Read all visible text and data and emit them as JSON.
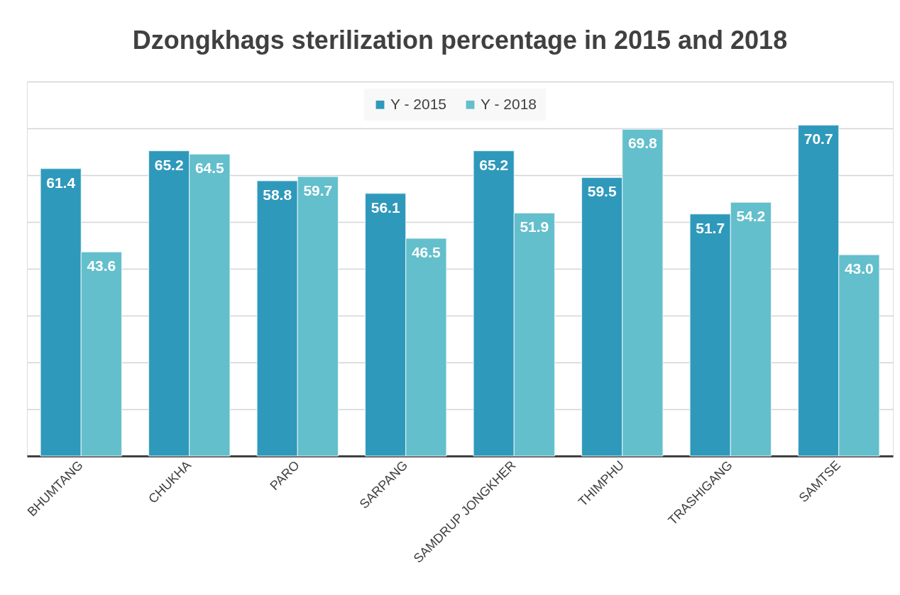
{
  "chart_data": {
    "type": "bar",
    "title": "Dzongkhags sterilization percentage in 2015 and 2018",
    "categories": [
      "BHUMTANG",
      "CHUKHA",
      "PARO",
      "SARPANG",
      "SAMDRUP JONGKHER",
      "THIMPHU",
      "TRASHIGANG",
      "SAMTSE"
    ],
    "series": [
      {
        "name": "Y - 2015",
        "color": "#2e99bb",
        "values": [
          61.4,
          65.2,
          58.8,
          56.1,
          65.2,
          59.5,
          51.7,
          70.7
        ],
        "value_labels": [
          "61.4",
          "65.2",
          "58.8",
          "56.1",
          "65.2",
          "59.5",
          "51.7",
          "70.7"
        ]
      },
      {
        "name": "Y - 2018",
        "color": "#63bfcc",
        "values": [
          43.6,
          64.5,
          59.7,
          46.5,
          51.9,
          69.8,
          54.2,
          43.0
        ],
        "value_labels": [
          "43.6",
          "64.5",
          "59.7",
          "46.5",
          "51.9",
          "69.8",
          "54.2",
          "43.0"
        ]
      }
    ],
    "ylim": [
      0,
      80
    ],
    "yticks": [
      {
        "value": 0,
        "label": null
      },
      {
        "value": 10,
        "label": null
      },
      {
        "value": 20,
        "label": null
      },
      {
        "value": 30,
        "label": null
      },
      {
        "value": 40,
        "label": null
      },
      {
        "value": 50,
        "label": null
      },
      {
        "value": 60,
        "label": null
      },
      {
        "value": 70,
        "label": null
      },
      {
        "value": 80,
        "label": null
      }
    ],
    "grid": "y",
    "legend": "top",
    "tick_labels": "x"
  }
}
